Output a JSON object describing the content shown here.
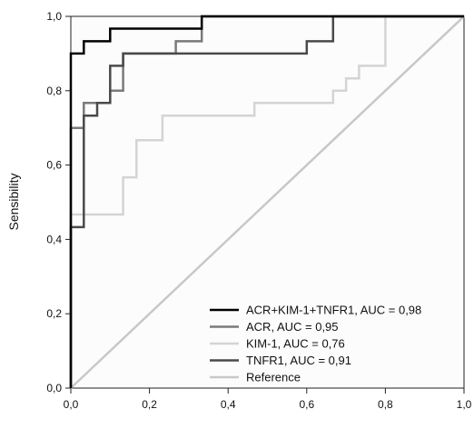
{
  "chart_data": {
    "type": "line",
    "title": "",
    "xlabel": "",
    "ylabel": "Sensibility",
    "xlim": [
      0,
      1
    ],
    "ylim": [
      0,
      1
    ],
    "x_ticks": [
      "0,0",
      "0,2",
      "0,4",
      "0,6",
      "0,8",
      "1,0"
    ],
    "y_ticks": [
      "0,0",
      "0,2",
      "0,4",
      "0,6",
      "0,8",
      "1,0"
    ],
    "grid": false,
    "legend_position": "bottom-right",
    "series": [
      {
        "name": "ACR+KIM-1+TNFR1, AUC = 0,98",
        "color": "#000000",
        "x": [
          0,
          0,
          0,
          0.033,
          0.033,
          0.1,
          0.1,
          0.333,
          0.333,
          1
        ],
        "y": [
          0,
          0.7,
          0.9,
          0.9,
          0.933,
          0.933,
          0.967,
          0.967,
          1.0,
          1.0
        ]
      },
      {
        "name": "ACR, AUC = 0,95",
        "color": "#7a7a7a",
        "x": [
          0,
          0,
          0.033,
          0.033,
          0.1,
          0.1,
          0.133,
          0.133,
          0.267,
          0.267,
          0.333,
          0.333,
          1
        ],
        "y": [
          0,
          0.7,
          0.7,
          0.767,
          0.767,
          0.8,
          0.8,
          0.9,
          0.9,
          0.933,
          0.933,
          1.0,
          1.0
        ]
      },
      {
        "name": "KIM-1, AUC = 0,76",
        "color": "#d4d4d4",
        "x": [
          0,
          0,
          0.033,
          0.033,
          0.133,
          0.133,
          0.167,
          0.167,
          0.233,
          0.233,
          0.467,
          0.467,
          0.667,
          0.667,
          0.7,
          0.7,
          0.733,
          0.733,
          0.767,
          0.767,
          0.8,
          0.8,
          0.833,
          0.833,
          1
        ],
        "y": [
          0,
          0.467,
          0.467,
          0.467,
          0.467,
          0.567,
          0.567,
          0.667,
          0.667,
          0.733,
          0.733,
          0.767,
          0.767,
          0.8,
          0.8,
          0.833,
          0.833,
          0.867,
          0.867,
          0.867,
          0.867,
          1.0,
          1.0,
          1.0,
          1.0
        ]
      },
      {
        "name": "TNFR1, AUC = 0,91",
        "color": "#4a4a4a",
        "x": [
          0,
          0,
          0.033,
          0.033,
          0.067,
          0.067,
          0.1,
          0.1,
          0.133,
          0.133,
          0.6,
          0.6,
          0.667,
          0.667,
          1
        ],
        "y": [
          0,
          0.433,
          0.433,
          0.733,
          0.733,
          0.767,
          0.767,
          0.867,
          0.867,
          0.9,
          0.9,
          0.933,
          0.933,
          1.0,
          1.0
        ]
      },
      {
        "name": "Reference",
        "color": "#c8c8c8",
        "x": [
          0,
          1
        ],
        "y": [
          0,
          1
        ]
      }
    ]
  }
}
